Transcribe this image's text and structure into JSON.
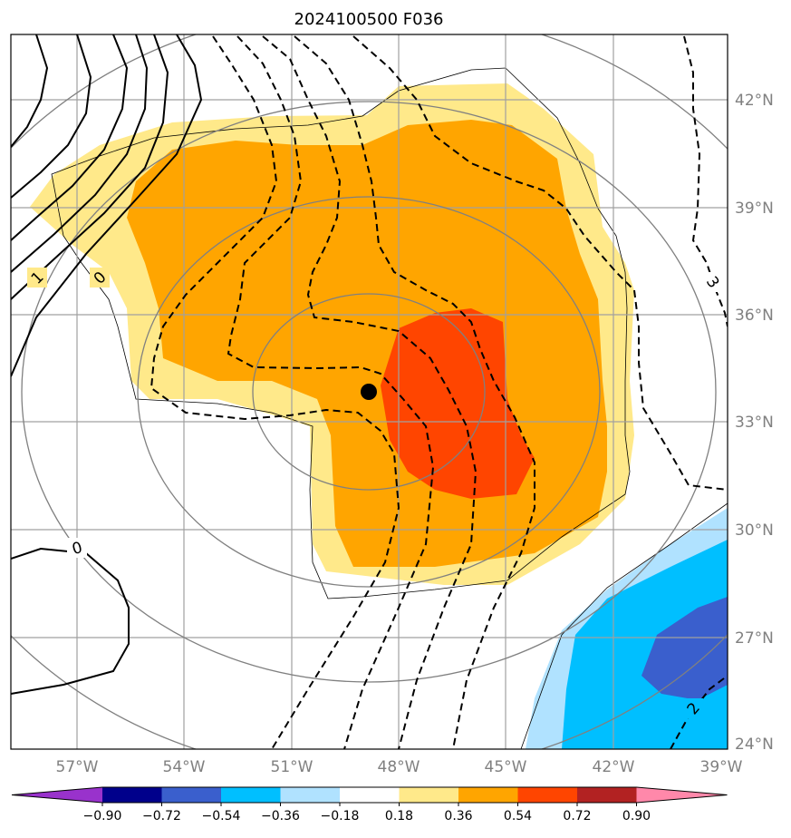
{
  "title": "2024100500 F036",
  "lon_ticks": [
    "57°W",
    "54°W",
    "51°W",
    "48°W",
    "45°W",
    "42°W",
    "39°W"
  ],
  "lat_ticks": [
    "42°N",
    "39°N",
    "36°N",
    "33°N",
    "30°N",
    "27°N",
    "24°N"
  ],
  "colorbar": {
    "levels": [
      "−0.90",
      "−0.72",
      "−0.54",
      "−0.36",
      "−0.18",
      "0.18",
      "0.36",
      "0.54",
      "0.72",
      "0.90"
    ],
    "colors": [
      "#9932cc",
      "#00008b",
      "#3a5fcd",
      "#00bfff",
      "#b0e2ff",
      "#ffffff",
      "#ffe98a",
      "#ffa500",
      "#ff4500",
      "#b22222",
      "#ff88aa"
    ]
  },
  "contour_labels": [
    "1",
    "0",
    "0",
    "3",
    "2"
  ],
  "fill_colors": {
    "light_yellow": "#ffe98a",
    "orange": "#ffa500",
    "red_orange": "#ff4500",
    "light_blue": "#b0e2ff",
    "deep_sky_blue": "#00bfff",
    "royal_blue": "#3a5fcd"
  }
}
